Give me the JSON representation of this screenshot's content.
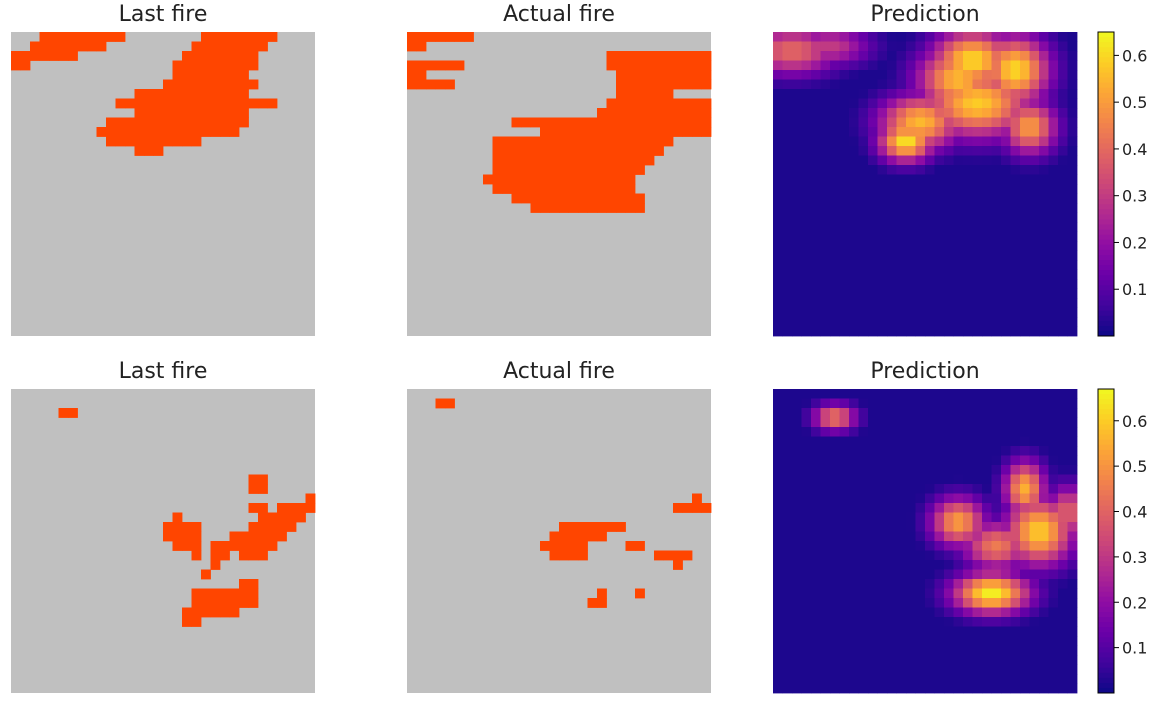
{
  "colors": {
    "background": "#c0c0c0",
    "fire": "#ff4500",
    "colormap": "plasma"
  },
  "chart_data": [
    {
      "type": "heatmap",
      "title": "Last fire",
      "grid_size": [
        32,
        32
      ],
      "values_shown": "binary fire mask",
      "fire_cells": [
        "0,3",
        "0,4",
        "0,5",
        "0,6",
        "0,7",
        "0,8",
        "0,9",
        "0,10",
        "0,11",
        "0,20",
        "0,21",
        "0,22",
        "0,23",
        "0,24",
        "0,25",
        "0,26",
        "0,27",
        "1,2",
        "1,3",
        "1,4",
        "1,5",
        "1,6",
        "1,7",
        "1,8",
        "1,9",
        "1,19",
        "1,20",
        "1,21",
        "1,22",
        "1,23",
        "1,24",
        "1,25",
        "1,26",
        "2,0",
        "2,1",
        "2,2",
        "2,3",
        "2,4",
        "2,5",
        "2,6",
        "2,18",
        "2,19",
        "2,20",
        "2,21",
        "2,22",
        "2,23",
        "2,24",
        "2,25",
        "3,0",
        "3,1",
        "3,17",
        "3,18",
        "3,19",
        "3,20",
        "3,21",
        "3,22",
        "3,23",
        "3,24",
        "3,25",
        "4,17",
        "4,18",
        "4,19",
        "4,20",
        "4,21",
        "4,22",
        "4,23",
        "4,24",
        "5,16",
        "5,17",
        "5,18",
        "5,19",
        "5,20",
        "5,21",
        "5,22",
        "5,23",
        "5,24",
        "5,25",
        "6,13",
        "6,14",
        "6,15",
        "6,16",
        "6,17",
        "6,18",
        "6,19",
        "6,20",
        "6,21",
        "6,22",
        "6,23",
        "6,24",
        "7,11",
        "7,12",
        "7,13",
        "7,14",
        "7,15",
        "7,16",
        "7,17",
        "7,18",
        "7,19",
        "7,20",
        "7,21",
        "7,22",
        "7,23",
        "7,24",
        "7,25",
        "7,26",
        "7,27",
        "8,13",
        "8,14",
        "8,15",
        "8,16",
        "8,17",
        "8,18",
        "8,19",
        "8,20",
        "8,21",
        "8,22",
        "8,23",
        "8,24",
        "9,10",
        "9,11",
        "9,12",
        "9,13",
        "9,14",
        "9,15",
        "9,16",
        "9,17",
        "9,18",
        "9,19",
        "9,20",
        "9,21",
        "9,22",
        "9,23",
        "9,24",
        "10,9",
        "10,10",
        "10,11",
        "10,12",
        "10,13",
        "10,14",
        "10,15",
        "10,16",
        "10,17",
        "10,18",
        "10,19",
        "10,20",
        "10,21",
        "10,22",
        "10,23",
        "11,10",
        "11,11",
        "11,12",
        "11,13",
        "11,14",
        "11,15",
        "11,16",
        "11,17",
        "11,18",
        "11,19",
        "12,13",
        "12,14",
        "12,15"
      ]
    },
    {
      "type": "heatmap",
      "title": "Actual fire",
      "grid_size": [
        32,
        32
      ],
      "values_shown": "binary fire mask",
      "fire_cells": [
        "0,0",
        "0,1",
        "0,2",
        "0,3",
        "0,4",
        "0,5",
        "0,6",
        "1,0",
        "1,1",
        "2,21",
        "2,22",
        "2,23",
        "2,24",
        "2,25",
        "2,26",
        "2,27",
        "2,28",
        "2,29",
        "2,30",
        "2,31",
        "3,0",
        "3,1",
        "3,2",
        "3,3",
        "3,4",
        "3,5",
        "3,21",
        "3,22",
        "3,23",
        "3,24",
        "3,25",
        "3,26",
        "3,27",
        "3,28",
        "3,29",
        "3,30",
        "3,31",
        "4,0",
        "4,1",
        "4,22",
        "4,23",
        "4,24",
        "4,25",
        "4,26",
        "4,27",
        "4,28",
        "4,29",
        "4,30",
        "4,31",
        "5,0",
        "5,1",
        "5,2",
        "5,3",
        "5,4",
        "5,22",
        "5,23",
        "5,24",
        "5,25",
        "5,26",
        "5,27",
        "5,28",
        "5,29",
        "5,30",
        "5,31",
        "6,22",
        "6,23",
        "6,24",
        "6,25",
        "6,26",
        "6,27",
        "7,21",
        "7,22",
        "7,23",
        "7,24",
        "7,25",
        "7,26",
        "7,27",
        "7,28",
        "7,29",
        "7,30",
        "7,31",
        "8,20",
        "8,21",
        "8,22",
        "8,23",
        "8,24",
        "8,25",
        "8,26",
        "8,27",
        "8,28",
        "8,29",
        "8,30",
        "8,31",
        "9,11",
        "9,12",
        "9,13",
        "9,14",
        "9,15",
        "9,16",
        "9,17",
        "9,18",
        "9,19",
        "9,20",
        "9,21",
        "9,22",
        "9,23",
        "9,24",
        "9,25",
        "9,26",
        "9,27",
        "9,28",
        "9,29",
        "9,30",
        "9,31",
        "10,14",
        "10,15",
        "10,16",
        "10,17",
        "10,18",
        "10,19",
        "10,20",
        "10,21",
        "10,22",
        "10,23",
        "10,24",
        "10,25",
        "10,26",
        "10,27",
        "10,28",
        "10,29",
        "10,30",
        "10,31",
        "11,9",
        "11,10",
        "11,11",
        "11,12",
        "11,13",
        "11,14",
        "11,15",
        "11,16",
        "11,17",
        "11,18",
        "11,19",
        "11,20",
        "11,21",
        "11,22",
        "11,23",
        "11,24",
        "11,25",
        "11,26",
        "11,27",
        "12,9",
        "12,10",
        "12,11",
        "12,12",
        "12,13",
        "12,14",
        "12,15",
        "12,16",
        "12,17",
        "12,18",
        "12,19",
        "12,20",
        "12,21",
        "12,22",
        "12,23",
        "12,24",
        "12,25",
        "12,26",
        "13,9",
        "13,10",
        "13,11",
        "13,12",
        "13,13",
        "13,14",
        "13,15",
        "13,16",
        "13,17",
        "13,18",
        "13,19",
        "13,20",
        "13,21",
        "13,22",
        "13,23",
        "13,24",
        "13,25",
        "14,9",
        "14,10",
        "14,11",
        "14,12",
        "14,13",
        "14,14",
        "14,15",
        "14,16",
        "14,17",
        "14,18",
        "14,19",
        "14,20",
        "14,21",
        "14,22",
        "14,23",
        "14,24",
        "15,8",
        "15,9",
        "15,10",
        "15,11",
        "15,12",
        "15,13",
        "15,14",
        "15,15",
        "15,16",
        "15,17",
        "15,18",
        "15,19",
        "15,20",
        "15,21",
        "15,22",
        "15,23",
        "16,9",
        "16,10",
        "16,11",
        "16,12",
        "16,13",
        "16,14",
        "16,15",
        "16,16",
        "16,17",
        "16,18",
        "16,19",
        "16,20",
        "16,21",
        "16,22",
        "16,23",
        "17,11",
        "17,12",
        "17,13",
        "17,14",
        "17,15",
        "17,16",
        "17,17",
        "17,18",
        "17,19",
        "17,20",
        "17,21",
        "17,22",
        "17,23",
        "17,24",
        "18,13",
        "18,14",
        "18,15",
        "18,16",
        "18,17",
        "18,18",
        "18,19",
        "18,20",
        "18,21",
        "18,22",
        "18,23",
        "18,24"
      ]
    },
    {
      "type": "heatmap",
      "title": "Prediction",
      "grid_size": [
        32,
        32
      ],
      "colormap": "plasma",
      "colorbar": {
        "ticks": [
          0.1,
          0.2,
          0.3,
          0.4,
          0.5,
          0.6
        ],
        "vmin": 0.0,
        "vmax": 0.65
      },
      "baseline": 0.02,
      "blobs": [
        {
          "row": 1.5,
          "col": 1.5,
          "value": 0.4,
          "sr": 1.8,
          "sc": 3.5
        },
        {
          "row": 1.0,
          "col": 5.5,
          "value": 0.3,
          "sr": 1.5,
          "sc": 3.0
        },
        {
          "row": 2.5,
          "col": 20.5,
          "value": 0.6,
          "sr": 2.2,
          "sc": 3.0
        },
        {
          "row": 4.5,
          "col": 19.0,
          "value": 0.55,
          "sr": 2.5,
          "sc": 3.0
        },
        {
          "row": 3.5,
          "col": 25.0,
          "value": 0.6,
          "sr": 2.5,
          "sc": 2.5
        },
        {
          "row": 7.0,
          "col": 21.0,
          "value": 0.58,
          "sr": 2.5,
          "sc": 4.0
        },
        {
          "row": 9.0,
          "col": 15.0,
          "value": 0.55,
          "sr": 2.0,
          "sc": 3.0
        },
        {
          "row": 11.0,
          "col": 13.5,
          "value": 0.62,
          "sr": 1.5,
          "sc": 2.0
        },
        {
          "row": 9.5,
          "col": 26.5,
          "value": 0.5,
          "sr": 2.0,
          "sc": 2.0
        }
      ]
    },
    {
      "type": "heatmap",
      "title": "Last fire",
      "grid_size": [
        32,
        32
      ],
      "values_shown": "binary fire mask",
      "fire_cells": [
        "2,5",
        "2,6",
        "9,25",
        "9,26",
        "10,25",
        "10,26",
        "11,31",
        "12,25",
        "12,26",
        "12,28",
        "12,29",
        "12,30",
        "12,31",
        "13,17",
        "13,26",
        "13,27",
        "13,28",
        "13,29",
        "13,30",
        "14,16",
        "14,17",
        "14,18",
        "14,19",
        "14,25",
        "14,26",
        "14,27",
        "14,28",
        "14,29",
        "15,16",
        "15,17",
        "15,18",
        "15,19",
        "15,23",
        "15,24",
        "15,25",
        "15,26",
        "15,27",
        "15,28",
        "16,17",
        "16,18",
        "16,19",
        "16,21",
        "16,22",
        "16,23",
        "16,24",
        "16,25",
        "16,26",
        "16,27",
        "17,19",
        "17,21",
        "17,22",
        "17,24",
        "17,25",
        "17,26",
        "18,21",
        "19,20",
        "20,24",
        "20,25",
        "21,19",
        "21,20",
        "21,21",
        "21,22",
        "21,23",
        "21,24",
        "21,25",
        "22,19",
        "22,20",
        "22,21",
        "22,22",
        "22,23",
        "22,24",
        "22,25",
        "23,18",
        "23,19",
        "23,20",
        "23,21",
        "23,22",
        "23,23",
        "24,18",
        "24,19"
      ]
    },
    {
      "type": "heatmap",
      "title": "Actual fire",
      "grid_size": [
        32,
        32
      ],
      "values_shown": "binary fire mask",
      "fire_cells": [
        "1,3",
        "1,4",
        "11,30",
        "12,28",
        "12,29",
        "12,30",
        "12,31",
        "14,16",
        "14,17",
        "14,18",
        "14,19",
        "14,20",
        "14,21",
        "14,22",
        "15,15",
        "15,16",
        "15,17",
        "15,18",
        "15,19",
        "15,20",
        "16,14",
        "16,15",
        "16,16",
        "16,17",
        "16,18",
        "16,23",
        "16,24",
        "17,15",
        "17,16",
        "17,17",
        "17,18",
        "17,26",
        "17,27",
        "17,28",
        "17,29",
        "18,28",
        "21,20",
        "21,24",
        "22,19",
        "22,20"
      ]
    },
    {
      "type": "heatmap",
      "title": "Prediction",
      "grid_size": [
        32,
        32
      ],
      "colormap": "plasma",
      "colorbar": {
        "ticks": [
          0.1,
          0.2,
          0.3,
          0.4,
          0.5,
          0.6
        ],
        "vmin": 0.0,
        "vmax": 0.67
      },
      "baseline": 0.02,
      "blobs": [
        {
          "row": 2.5,
          "col": 6.0,
          "value": 0.45,
          "sr": 1.0,
          "sc": 1.6
        },
        {
          "row": 10.0,
          "col": 26.0,
          "value": 0.55,
          "sr": 2.0,
          "sc": 1.5
        },
        {
          "row": 13.5,
          "col": 19.0,
          "value": 0.52,
          "sr": 1.8,
          "sc": 2.0
        },
        {
          "row": 14.5,
          "col": 27.5,
          "value": 0.6,
          "sr": 2.5,
          "sc": 2.5
        },
        {
          "row": 16.0,
          "col": 23.0,
          "value": 0.45,
          "sr": 1.8,
          "sc": 2.5
        },
        {
          "row": 21.0,
          "col": 22.5,
          "value": 0.66,
          "sr": 1.5,
          "sc": 2.8
        },
        {
          "row": 12.5,
          "col": 30.5,
          "value": 0.4,
          "sr": 2.0,
          "sc": 1.5
        }
      ]
    }
  ]
}
